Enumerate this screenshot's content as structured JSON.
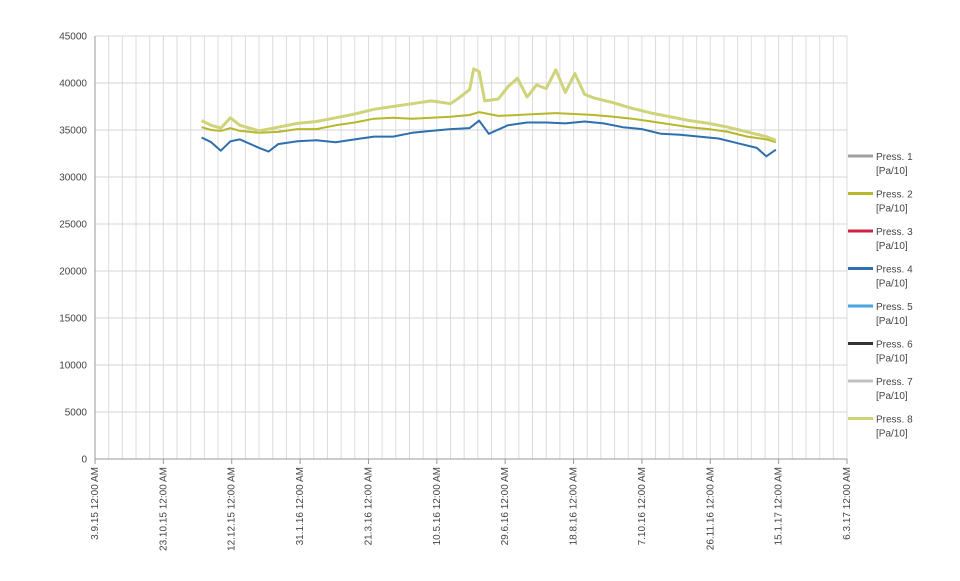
{
  "chart_data": {
    "type": "line",
    "title": "",
    "xlabel": "",
    "ylabel": "",
    "ylim": [
      0,
      45000
    ],
    "xlim": [
      "2015-09-03",
      "2017-03-06"
    ],
    "yticks": [
      0,
      5000,
      10000,
      15000,
      20000,
      25000,
      30000,
      35000,
      40000,
      45000
    ],
    "xticks": [
      {
        "label": "3.9.15 12:00 AM",
        "date": "2015-09-03"
      },
      {
        "label": "23.10.15 12:00 AM",
        "date": "2015-10-23"
      },
      {
        "label": "12.12.15 12:00 AM",
        "date": "2015-12-12"
      },
      {
        "label": "31.1.16 12:00 AM",
        "date": "2016-01-31"
      },
      {
        "label": "21.3.16 12:00 AM",
        "date": "2016-03-21"
      },
      {
        "label": "10.5.16 12:00 AM",
        "date": "2016-05-10"
      },
      {
        "label": "29.6.16 12:00 AM",
        "date": "2016-06-29"
      },
      {
        "label": "18.8.16 12:00 AM",
        "date": "2016-08-18"
      },
      {
        "label": "7.10.16 12:00 AM",
        "date": "2016-10-07"
      },
      {
        "label": "26.11.16 12:00 AM",
        "date": "2016-11-26"
      },
      {
        "label": "15.1.17 12:00 AM",
        "date": "2017-01-15"
      },
      {
        "label": "6.3.17 12:00 AM",
        "date": "2017-03-06"
      }
    ],
    "grid": true,
    "legend_position": "right",
    "series": [
      {
        "name": "Press. 1 [Pa/10]",
        "line1": "Press. 1",
        "line2": "[Pa/10]",
        "color": "#a0a0a0",
        "points": []
      },
      {
        "name": "Press. 2 [Pa/10]",
        "line1": "Press. 2",
        "line2": "[Pa/10]",
        "color": "#b5b82a",
        "points": [
          [
            "2015-11-20",
            35300
          ],
          [
            "2015-11-27",
            35000
          ],
          [
            "2015-12-04",
            34900
          ],
          [
            "2015-12-11",
            35200
          ],
          [
            "2015-12-18",
            34900
          ],
          [
            "2016-01-01",
            34700
          ],
          [
            "2016-01-15",
            34800
          ],
          [
            "2016-01-29",
            35100
          ],
          [
            "2016-02-12",
            35100
          ],
          [
            "2016-02-26",
            35500
          ],
          [
            "2016-03-11",
            35800
          ],
          [
            "2016-03-25",
            36200
          ],
          [
            "2016-04-08",
            36300
          ],
          [
            "2016-04-22",
            36200
          ],
          [
            "2016-05-06",
            36300
          ],
          [
            "2016-05-20",
            36400
          ],
          [
            "2016-06-03",
            36600
          ],
          [
            "2016-06-10",
            36900
          ],
          [
            "2016-06-24",
            36500
          ],
          [
            "2016-07-08",
            36600
          ],
          [
            "2016-07-22",
            36700
          ],
          [
            "2016-08-05",
            36800
          ],
          [
            "2016-08-19",
            36700
          ],
          [
            "2016-09-02",
            36600
          ],
          [
            "2016-09-16",
            36400
          ],
          [
            "2016-09-30",
            36200
          ],
          [
            "2016-10-14",
            35900
          ],
          [
            "2016-10-28",
            35600
          ],
          [
            "2016-11-11",
            35300
          ],
          [
            "2016-11-25",
            35100
          ],
          [
            "2016-12-09",
            34800
          ],
          [
            "2016-12-23",
            34300
          ],
          [
            "2017-01-06",
            34000
          ],
          [
            "2017-01-13",
            33700
          ]
        ]
      },
      {
        "name": "Press. 3 [Pa/10]",
        "line1": "Press. 3",
        "line2": "[Pa/10]",
        "color": "#cc2244",
        "points": []
      },
      {
        "name": "Press. 4 [Pa/10]",
        "line1": "Press. 4",
        "line2": "[Pa/10]",
        "color": "#2e6fad",
        "points": [
          [
            "2015-11-20",
            34200
          ],
          [
            "2015-11-27",
            33700
          ],
          [
            "2015-12-04",
            32800
          ],
          [
            "2015-12-11",
            33800
          ],
          [
            "2015-12-18",
            34000
          ],
          [
            "2016-01-01",
            33100
          ],
          [
            "2016-01-08",
            32700
          ],
          [
            "2016-01-15",
            33500
          ],
          [
            "2016-01-29",
            33800
          ],
          [
            "2016-02-12",
            33900
          ],
          [
            "2016-02-26",
            33700
          ],
          [
            "2016-03-11",
            34000
          ],
          [
            "2016-03-25",
            34300
          ],
          [
            "2016-04-08",
            34300
          ],
          [
            "2016-04-22",
            34700
          ],
          [
            "2016-05-06",
            34900
          ],
          [
            "2016-05-20",
            35100
          ],
          [
            "2016-06-03",
            35200
          ],
          [
            "2016-06-10",
            36000
          ],
          [
            "2016-06-17",
            34600
          ],
          [
            "2016-07-01",
            35500
          ],
          [
            "2016-07-15",
            35800
          ],
          [
            "2016-07-29",
            35800
          ],
          [
            "2016-08-12",
            35700
          ],
          [
            "2016-08-26",
            35900
          ],
          [
            "2016-09-09",
            35700
          ],
          [
            "2016-09-23",
            35300
          ],
          [
            "2016-10-07",
            35100
          ],
          [
            "2016-10-21",
            34600
          ],
          [
            "2016-11-04",
            34500
          ],
          [
            "2016-11-18",
            34300
          ],
          [
            "2016-12-02",
            34100
          ],
          [
            "2016-12-16",
            33600
          ],
          [
            "2016-12-30",
            33100
          ],
          [
            "2017-01-06",
            32200
          ],
          [
            "2017-01-13",
            32900
          ]
        ]
      },
      {
        "name": "Press. 5 [Pa/10]",
        "line1": "Press. 5",
        "line2": "[Pa/10]",
        "color": "#4aa3df",
        "points": []
      },
      {
        "name": "Press. 6 [Pa/10]",
        "line1": "Press. 6",
        "line2": "[Pa/10]",
        "color": "#333333",
        "points": []
      },
      {
        "name": "Press. 7 [Pa/10]",
        "line1": "Press. 7",
        "line2": "[Pa/10]",
        "color": "#c0c0c0",
        "points": []
      },
      {
        "name": "Press. 8 [Pa/10]",
        "line1": "Press. 8",
        "line2": "[Pa/10]",
        "color": "#cfd37a",
        "points": [
          [
            "2015-11-20",
            36000
          ],
          [
            "2015-11-27",
            35500
          ],
          [
            "2015-12-04",
            35200
          ],
          [
            "2015-12-11",
            36300
          ],
          [
            "2015-12-18",
            35500
          ],
          [
            "2016-01-01",
            34900
          ],
          [
            "2016-01-15",
            35300
          ],
          [
            "2016-01-29",
            35700
          ],
          [
            "2016-02-12",
            35900
          ],
          [
            "2016-02-26",
            36300
          ],
          [
            "2016-03-11",
            36700
          ],
          [
            "2016-03-25",
            37200
          ],
          [
            "2016-04-08",
            37500
          ],
          [
            "2016-04-22",
            37800
          ],
          [
            "2016-05-06",
            38100
          ],
          [
            "2016-05-20",
            37800
          ],
          [
            "2016-05-27",
            38500
          ],
          [
            "2016-06-03",
            39300
          ],
          [
            "2016-06-06",
            41500
          ],
          [
            "2016-06-10",
            41200
          ],
          [
            "2016-06-14",
            38100
          ],
          [
            "2016-06-24",
            38300
          ],
          [
            "2016-07-01",
            39600
          ],
          [
            "2016-07-08",
            40500
          ],
          [
            "2016-07-15",
            38500
          ],
          [
            "2016-07-22",
            39800
          ],
          [
            "2016-07-29",
            39400
          ],
          [
            "2016-08-05",
            41400
          ],
          [
            "2016-08-12",
            39000
          ],
          [
            "2016-08-19",
            41000
          ],
          [
            "2016-08-26",
            38800
          ],
          [
            "2016-09-02",
            38400
          ],
          [
            "2016-09-16",
            37900
          ],
          [
            "2016-09-30",
            37300
          ],
          [
            "2016-10-14",
            36800
          ],
          [
            "2016-10-28",
            36400
          ],
          [
            "2016-11-11",
            36000
          ],
          [
            "2016-11-25",
            35700
          ],
          [
            "2016-12-09",
            35300
          ],
          [
            "2016-12-23",
            34800
          ],
          [
            "2017-01-06",
            34300
          ],
          [
            "2017-01-13",
            33900
          ]
        ]
      }
    ]
  }
}
